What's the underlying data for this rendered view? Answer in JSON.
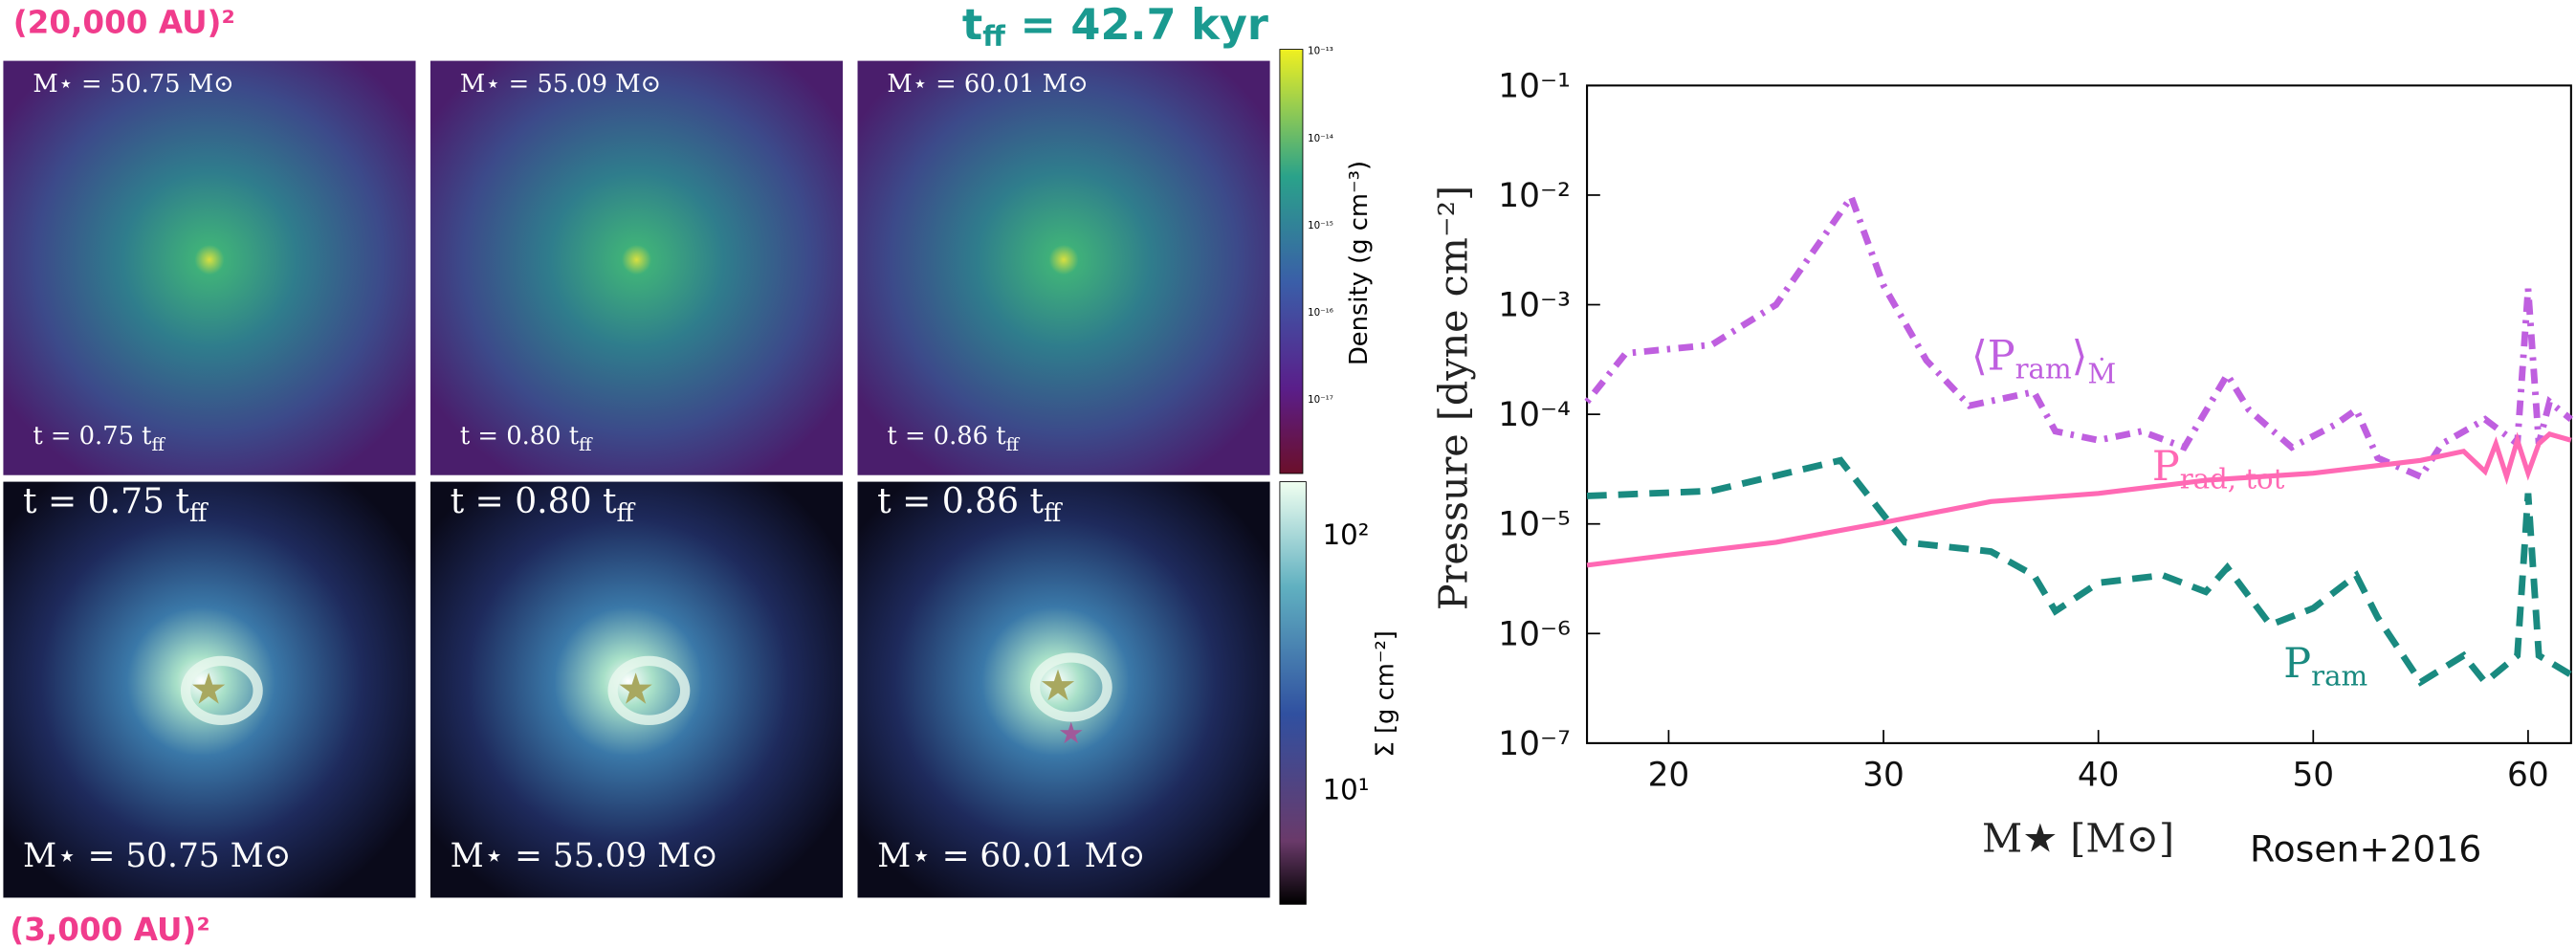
{
  "panels": {
    "top_scale": "(20,000 AU)²",
    "bottom_scale": "(3,000 AU)²",
    "free_fall": {
      "text": "t",
      "sub": "ff",
      "rest": " = 42.7 kyr"
    },
    "top_row": [
      {
        "mass": "M⋆ = 50.75 M⊙",
        "time": {
          "text": "t = 0.75 t",
          "sub": "ff"
        }
      },
      {
        "mass": "M⋆ = 55.09 M⊙",
        "time": {
          "text": "t = 0.80 t",
          "sub": "ff"
        }
      },
      {
        "mass": "M⋆ = 60.01 M⊙",
        "time": {
          "text": "t = 0.86 t",
          "sub": "ff"
        }
      }
    ],
    "bottom_row": [
      {
        "mass": "M⋆ = 50.75 M⊙",
        "time": {
          "text": "t = 0.75 t",
          "sub": "ff"
        }
      },
      {
        "mass": "M⋆ = 55.09 M⊙",
        "time": {
          "text": "t = 0.80 t",
          "sub": "ff"
        }
      },
      {
        "mass": "M⋆ = 60.01 M⊙",
        "time": {
          "text": "t = 0.86 t",
          "sub": "ff"
        }
      }
    ],
    "density_colorbar": {
      "label": "Density (g cm⁻³)",
      "ticks": [
        "10⁻¹³",
        "10⁻¹⁴",
        "10⁻¹⁵",
        "10⁻¹⁶",
        "10⁻¹⁷"
      ]
    },
    "surface_colorbar": {
      "label": "Σ [g cm⁻²]",
      "ticks": [
        "10²",
        "10¹"
      ]
    }
  },
  "chart_data": {
    "type": "line",
    "y_label": "Pressure  [dyne cm⁻²]",
    "x_label": "M★  [M⊙]",
    "source": "Rosen+2016",
    "log_y": true,
    "xlim": [
      16.2,
      62
    ],
    "xticks": [
      20,
      30,
      40,
      50,
      60
    ],
    "ylim": [
      1e-07,
      0.1
    ],
    "yticks": [
      {
        "value": 0.1,
        "label": "10⁻¹"
      },
      {
        "value": 0.01,
        "label": "10⁻²"
      },
      {
        "value": 0.001,
        "label": "10⁻³"
      },
      {
        "value": 0.0001,
        "label": "10⁻⁴"
      },
      {
        "value": 1e-05,
        "label": "10⁻⁵"
      },
      {
        "value": 1e-06,
        "label": "10⁻⁶"
      },
      {
        "value": 1e-07,
        "label": "10⁻⁷"
      }
    ],
    "series": [
      {
        "name": "⟨P",
        "name_sub": "ram",
        "name_end": "⟩",
        "name_end_sub": "Ṁ",
        "color": "#bf5fdf",
        "style": "dashdot",
        "x": [
          16.2,
          18,
          22,
          25,
          28.5,
          30,
          32,
          34,
          37,
          38,
          40,
          42,
          44,
          46,
          47,
          49,
          51,
          52,
          53,
          55,
          56,
          58,
          59.5,
          60,
          60.5,
          61,
          62
        ],
        "values": [
          0.00013,
          0.00036,
          0.00043,
          0.001,
          0.0096,
          0.0015,
          0.00031,
          0.00012,
          0.00016,
          7e-05,
          5.8e-05,
          7e-05,
          5e-05,
          0.00023,
          0.00011,
          5e-05,
          8e-05,
          0.00011,
          4e-05,
          2.7e-05,
          5.4e-05,
          9e-05,
          5.4e-05,
          0.0014,
          5.4e-05,
          0.00013,
          9e-05
        ]
      },
      {
        "name": "P",
        "name_sub": "rad, tot",
        "color": "#ff69b4",
        "style": "solid",
        "x": [
          16.2,
          20,
          25,
          30,
          35,
          40,
          45,
          50,
          55,
          57,
          58,
          58.5,
          59,
          59.5,
          60,
          60.5,
          61,
          62
        ],
        "values": [
          4.2e-06,
          5.2e-06,
          6.8e-06,
          1.03e-05,
          1.6e-05,
          1.9e-05,
          2.5e-05,
          2.9e-05,
          3.8e-05,
          4.6e-05,
          3e-05,
          5.4e-05,
          2.7e-05,
          5.8e-05,
          2.9e-05,
          5.4e-05,
          6.6e-05,
          5.8e-05
        ]
      },
      {
        "name": "P",
        "name_sub": "ram",
        "color": "#1a8a80",
        "style": "dashed",
        "x": [
          16.2,
          22,
          28,
          31,
          35,
          37,
          38,
          40,
          43,
          45,
          46,
          48,
          50,
          52,
          53,
          55,
          57,
          58,
          59.5,
          60,
          60.5,
          62
        ],
        "values": [
          1.8e-05,
          2e-05,
          3.8e-05,
          6.8e-06,
          5.6e-06,
          3.4e-06,
          1.6e-06,
          2.9e-06,
          3.4e-06,
          2.4e-06,
          4e-06,
          1.2e-06,
          1.7e-06,
          3.4e-06,
          1.4e-06,
          3.6e-07,
          6.3e-07,
          3.6e-07,
          6.3e-07,
          1.9e-05,
          6.3e-07,
          4.2e-07
        ]
      }
    ],
    "annotations_at": [
      [
        1200,
        225
      ],
      [
        1310,
        292
      ],
      [
        1390,
        412
      ]
    ]
  }
}
